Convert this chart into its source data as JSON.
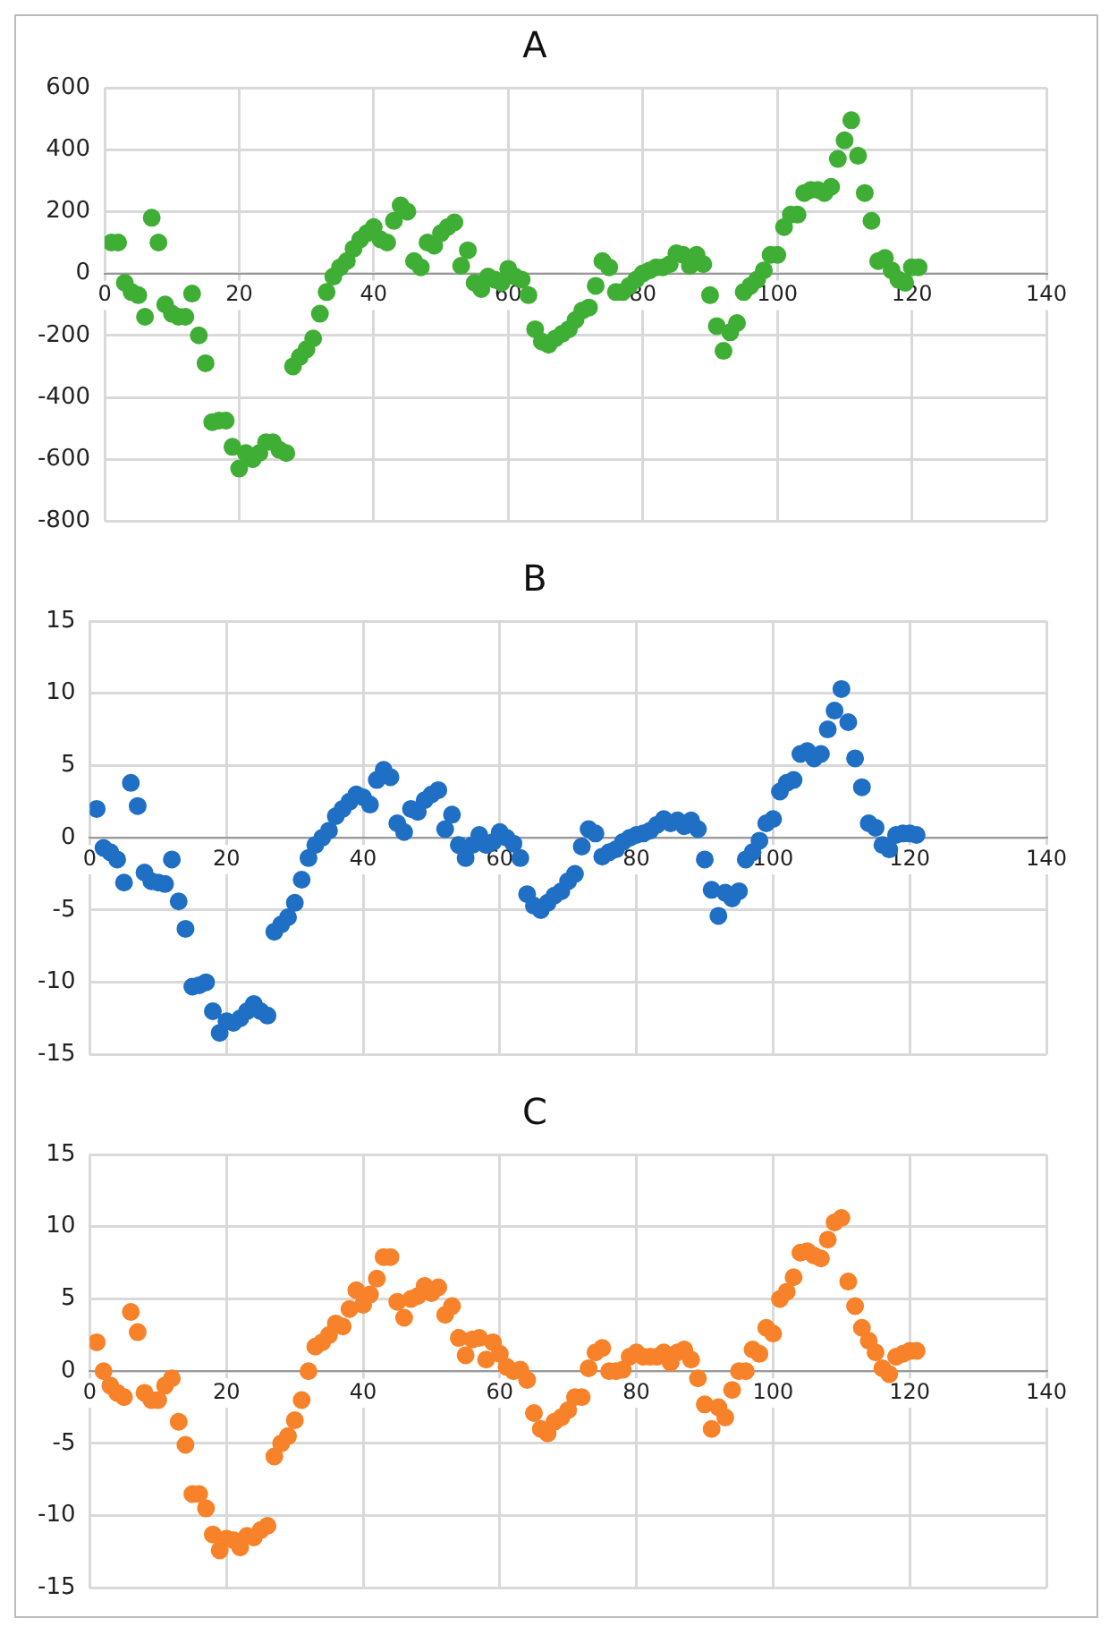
{
  "chart_data": [
    {
      "type": "scatter",
      "title": "A",
      "xlim": [
        0,
        140
      ],
      "xticks": [
        0,
        20,
        40,
        60,
        80,
        100,
        120,
        140
      ],
      "ylim": [
        -800,
        600
      ],
      "yticks": [
        -800,
        -600,
        -400,
        -200,
        0,
        200,
        400,
        600
      ],
      "grid": true,
      "marker": "circle",
      "x": [
        1,
        2,
        3,
        4,
        5,
        6,
        7,
        8,
        9,
        10,
        11,
        12,
        13,
        14,
        15,
        16,
        17,
        18,
        19,
        20,
        21,
        22,
        23,
        24,
        25,
        26,
        27,
        28,
        29,
        30,
        31,
        32,
        33,
        34,
        35,
        36,
        37,
        38,
        39,
        40,
        41,
        42,
        43,
        44,
        45,
        46,
        47,
        48,
        49,
        50,
        51,
        52,
        53,
        54,
        55,
        56,
        57,
        58,
        59,
        60,
        61,
        62,
        63,
        64,
        65,
        66,
        67,
        68,
        69,
        70,
        71,
        72,
        73,
        74,
        75,
        76,
        77,
        78,
        79,
        80,
        81,
        82,
        83,
        84,
        85,
        86,
        87,
        88,
        89,
        90,
        91,
        92,
        93,
        94,
        95,
        96,
        97,
        98,
        99,
        100,
        101,
        102,
        103,
        104,
        105,
        106,
        107,
        108,
        109,
        110,
        111,
        112,
        113,
        114,
        115,
        116,
        117,
        118,
        119,
        120,
        121
      ],
      "series": [
        {
          "color": "#3fae35",
          "values": [
            100,
            100,
            -30,
            -60,
            -70,
            -140,
            180,
            100,
            -100,
            -130,
            -140,
            -140,
            -65,
            -200,
            -290,
            -480,
            -475,
            -475,
            -560,
            -630,
            -580,
            -600,
            -580,
            -545,
            -545,
            -570,
            -580,
            -300,
            -270,
            -245,
            -210,
            -130,
            -60,
            -10,
            20,
            40,
            80,
            110,
            130,
            150,
            110,
            100,
            170,
            220,
            200,
            40,
            20,
            100,
            90,
            130,
            150,
            165,
            25,
            75,
            -30,
            -50,
            -10,
            -20,
            -30,
            15,
            -10,
            -20,
            -70,
            -180,
            -220,
            -230,
            -210,
            -195,
            -180,
            -150,
            -120,
            -110,
            -40,
            40,
            20,
            -60,
            -60,
            -40,
            -20,
            0,
            10,
            20,
            20,
            30,
            65,
            60,
            25,
            60,
            30,
            -70,
            -170,
            -250,
            -190,
            -160,
            -60,
            -40,
            -20,
            10,
            60,
            60,
            150,
            190,
            190,
            260,
            270,
            270,
            260,
            280,
            370,
            430,
            495,
            380,
            260,
            170,
            40,
            50,
            10,
            -20,
            -30,
            20,
            20
          ]
        }
      ]
    },
    {
      "type": "scatter",
      "title": "B",
      "xlim": [
        0,
        140
      ],
      "xticks": [
        0,
        20,
        40,
        60,
        80,
        100,
        120,
        140
      ],
      "ylim": [
        -15,
        15
      ],
      "yticks": [
        -15,
        -10,
        -5,
        0,
        5,
        10,
        15
      ],
      "grid": true,
      "marker": "circle",
      "x": [
        1,
        2,
        3,
        4,
        5,
        6,
        7,
        8,
        9,
        10,
        11,
        12,
        13,
        14,
        15,
        16,
        17,
        18,
        19,
        20,
        21,
        22,
        23,
        24,
        25,
        26,
        27,
        28,
        29,
        30,
        31,
        32,
        33,
        34,
        35,
        36,
        37,
        38,
        39,
        40,
        41,
        42,
        43,
        44,
        45,
        46,
        47,
        48,
        49,
        50,
        51,
        52,
        53,
        54,
        55,
        56,
        57,
        58,
        59,
        60,
        61,
        62,
        63,
        64,
        65,
        66,
        67,
        68,
        69,
        70,
        71,
        72,
        73,
        74,
        75,
        76,
        77,
        78,
        79,
        80,
        81,
        82,
        83,
        84,
        85,
        86,
        87,
        88,
        89,
        90,
        91,
        92,
        93,
        94,
        95,
        96,
        97,
        98,
        99,
        100,
        101,
        102,
        103,
        104,
        105,
        106,
        107,
        108,
        109,
        110,
        111,
        112,
        113,
        114,
        115,
        116,
        117,
        118,
        119,
        120,
        121
      ],
      "series": [
        {
          "color": "#1f6fc5",
          "values": [
            2,
            -0.7,
            -1,
            -1.5,
            -3.1,
            3.8,
            2.2,
            -2.4,
            -3,
            -3.1,
            -3.2,
            -1.5,
            -4.4,
            -6.3,
            -10.3,
            -10.2,
            -10,
            -12,
            -13.5,
            -12.7,
            -12.8,
            -12.5,
            -12,
            -11.5,
            -12,
            -12.3,
            -6.5,
            -6,
            -5.5,
            -4.5,
            -2.9,
            -1.4,
            -0.5,
            0,
            0.5,
            1.5,
            2,
            2.5,
            3,
            2.8,
            2.3,
            4,
            4.7,
            4.2,
            1,
            0.4,
            2,
            1.8,
            2.6,
            3,
            3.3,
            0.6,
            1.6,
            -0.5,
            -1.4,
            -0.5,
            0.2,
            -0.5,
            -0.3,
            0.4,
            0,
            -0.4,
            -1.4,
            -3.9,
            -4.7,
            -5,
            -4.5,
            -4,
            -3.7,
            -3,
            -2.5,
            -0.6,
            0.6,
            0.3,
            -1.3,
            -1,
            -0.8,
            -0.3,
            0,
            0.2,
            0.3,
            0.5,
            0.9,
            1.3,
            1,
            1.2,
            0.8,
            1.2,
            0.6,
            -1.5,
            -3.6,
            -5.4,
            -3.8,
            -4.2,
            -3.7,
            -1.5,
            -1,
            -0.2,
            1,
            1.3,
            3.2,
            3.8,
            4,
            5.8,
            6,
            5.5,
            5.8,
            7.5,
            8.8,
            10.3,
            8,
            5.5,
            3.5,
            1,
            0.7,
            -0.5,
            -0.8,
            0.2,
            0.3,
            0.3,
            0.2
          ]
        }
      ]
    },
    {
      "type": "scatter",
      "title": "C",
      "xlim": [
        0,
        140
      ],
      "xticks": [
        0,
        20,
        40,
        60,
        80,
        100,
        120,
        140
      ],
      "ylim": [
        -15,
        15
      ],
      "yticks": [
        -15,
        -10,
        -5,
        0,
        5,
        10,
        15
      ],
      "grid": true,
      "marker": "circle",
      "x": [
        1,
        2,
        3,
        4,
        5,
        6,
        7,
        8,
        9,
        10,
        11,
        12,
        13,
        14,
        15,
        16,
        17,
        18,
        19,
        20,
        21,
        22,
        23,
        24,
        25,
        26,
        27,
        28,
        29,
        30,
        31,
        32,
        33,
        34,
        35,
        36,
        37,
        38,
        39,
        40,
        41,
        42,
        43,
        44,
        45,
        46,
        47,
        48,
        49,
        50,
        51,
        52,
        53,
        54,
        55,
        56,
        57,
        58,
        59,
        60,
        61,
        62,
        63,
        64,
        65,
        66,
        67,
        68,
        69,
        70,
        71,
        72,
        73,
        74,
        75,
        76,
        77,
        78,
        79,
        80,
        81,
        82,
        83,
        84,
        85,
        86,
        87,
        88,
        89,
        90,
        91,
        92,
        93,
        94,
        95,
        96,
        97,
        98,
        99,
        100,
        101,
        102,
        103,
        104,
        105,
        106,
        107,
        108,
        109,
        110,
        111,
        112,
        113,
        114,
        115,
        116,
        117,
        118,
        119,
        120,
        121
      ],
      "series": [
        {
          "color": "#f7822a",
          "values": [
            2,
            0,
            -1,
            -1.5,
            -1.8,
            4.1,
            2.7,
            -1.5,
            -2,
            -2,
            -1,
            -0.5,
            -3.5,
            -5.1,
            -8.5,
            -8.5,
            -9.5,
            -11.3,
            -12.4,
            -11.6,
            -11.7,
            -12.2,
            -11.4,
            -11.5,
            -11,
            -10.7,
            -5.9,
            -5,
            -4.5,
            -3.4,
            -2,
            0,
            1.7,
            2,
            2.5,
            3.3,
            3.1,
            4.3,
            5.6,
            4.6,
            5.3,
            6.4,
            7.9,
            7.9,
            4.8,
            3.7,
            5,
            5.2,
            5.9,
            5.4,
            5.8,
            3.9,
            4.5,
            2.3,
            1.1,
            2.2,
            2.3,
            0.8,
            2,
            1.2,
            0.3,
            0,
            0.1,
            -0.6,
            -2.9,
            -4,
            -4.3,
            -3.5,
            -3.2,
            -2.7,
            -1.8,
            -1.8,
            0.2,
            1.3,
            1.6,
            0,
            0,
            0.1,
            1,
            1.3,
            1,
            1,
            1,
            1.3,
            0.6,
            1.3,
            1.5,
            0.8,
            -0.5,
            -2.3,
            -4,
            -2.5,
            -3.2,
            -1.3,
            0,
            0,
            1.5,
            1.2,
            3,
            2.6,
            5,
            5.5,
            6.5,
            8.2,
            8.3,
            8,
            7.8,
            9.1,
            10.3,
            10.6,
            6.2,
            4.5,
            3,
            2.1,
            1.3,
            0.2,
            -0.2,
            1,
            1.2,
            1.4,
            1.4
          ]
        }
      ]
    }
  ]
}
